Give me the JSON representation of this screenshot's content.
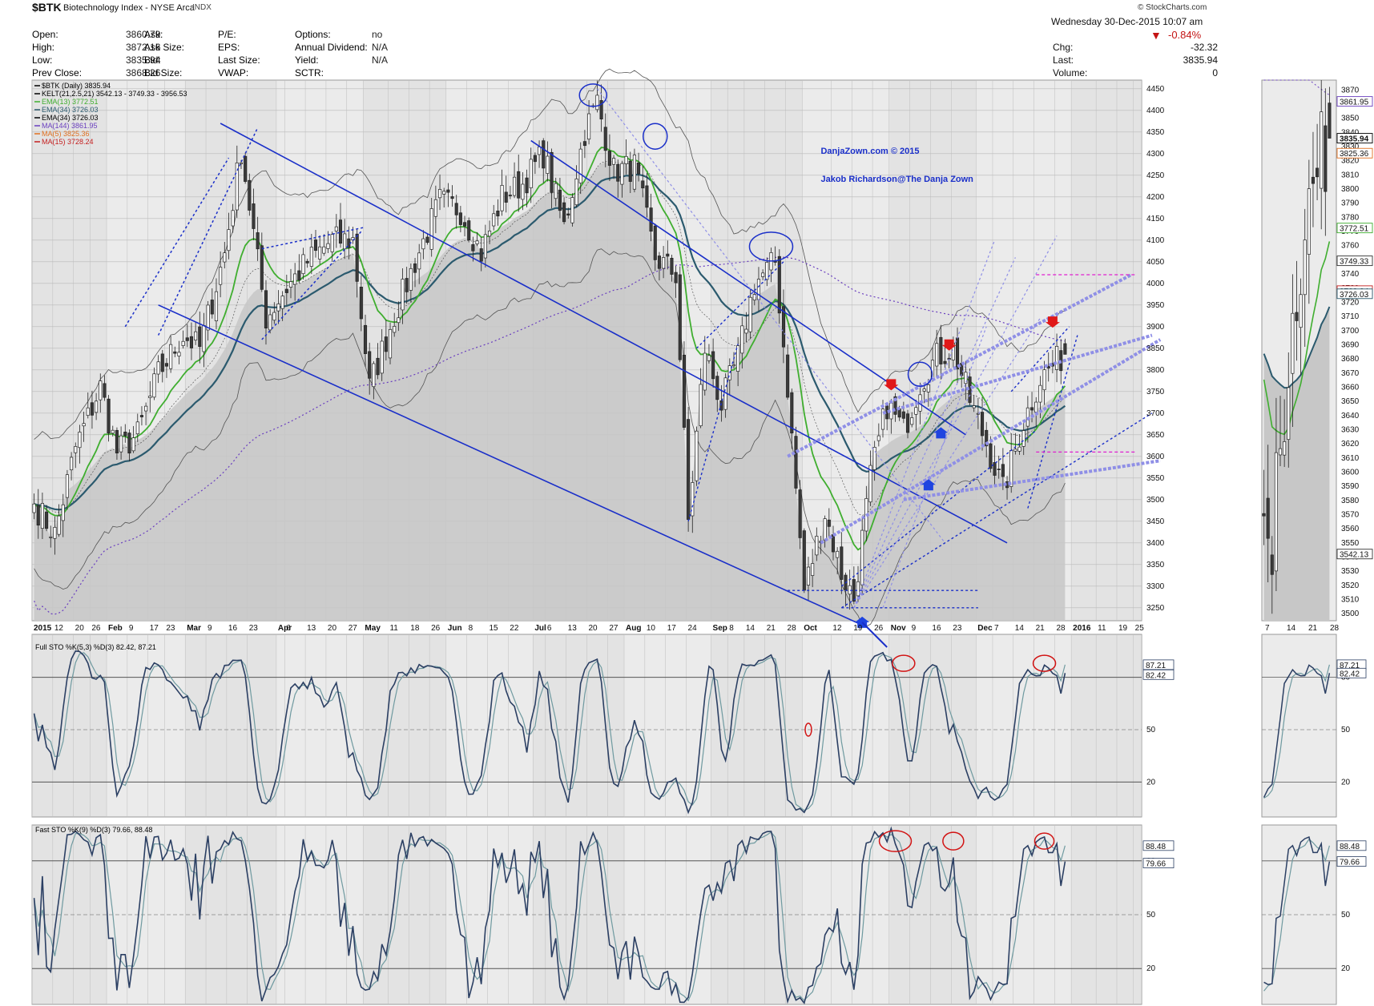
{
  "header": {
    "symbol": "$BTK",
    "name": "Biotechnology Index - NYSE Arca",
    "exchange": "INDX",
    "timestamp": "Wednesday 30-Dec-2015 10:07 am",
    "brand": "© StockCharts.com",
    "change_pct": "-0.84%",
    "quote_rows": [
      {
        "l1": "Open:",
        "v1": "3860.79",
        "l2": "Ask:",
        "v2": "",
        "l3": "P/E:",
        "v3": "",
        "l4": "Options:",
        "v4": "no"
      },
      {
        "l1": "High:",
        "v1": "3872.16",
        "l2": "Ask Size:",
        "v2": "",
        "l3": "EPS:",
        "v3": "",
        "l4": "Annual Dividend:",
        "v4": "N/A"
      },
      {
        "l1": "Low:",
        "v1": "3835.94",
        "l2": "Bid:",
        "v2": "",
        "l3": "Last Size:",
        "v3": "",
        "l4": "Yield:",
        "v4": "N/A"
      },
      {
        "l1": "Prev Close:",
        "v1": "3868.26",
        "l2": "Bid Size:",
        "v2": "",
        "l3": "VWAP:",
        "v3": "",
        "l4": "SCTR:",
        "v4": ""
      }
    ],
    "right_rows": [
      {
        "l": "Chg:",
        "v": "-32.32"
      },
      {
        "l": "Last:",
        "v": "3835.94"
      },
      {
        "l": "Volume:",
        "v": "0"
      }
    ]
  },
  "colors": {
    "background": "#ffffff",
    "panel": "#ebebeb",
    "band": "#dcdcdc",
    "area": "#c7c7c7",
    "ema13": "#3fae2f",
    "ema34": "#2b5a6e",
    "ma144": "#6a3fbf",
    "ma5": "#e07020",
    "ma15": "#c41e1e",
    "kelt": "#555555",
    "stoK": "#2b3f63",
    "stoD": "#6f9aa0",
    "trend": "#1a2fc9",
    "trend_light": "#8f8fe6",
    "circle_blue": "#1a2fc9",
    "circle_red": "#d21414",
    "level_magenta": "#e020d0",
    "arrow_red": "#e01818",
    "arrow_blue": "#1f44e0"
  },
  "legend": [
    {
      "text": "$BTK (Daily) 3835.94",
      "color": "#000000"
    },
    {
      "text": "KELT(21,2.5,21) 3542.13 - 3749.33 - 3956.53",
      "color": "#000000"
    },
    {
      "text": "EMA(13) 3772.51",
      "color": "#3fae2f"
    },
    {
      "text": "EMA(34) 3726.03",
      "color": "#2b5a6e"
    },
    {
      "text": "EMA(34) 3726.03",
      "color": "#000000"
    },
    {
      "text": "MA(144) 3861.95",
      "color": "#6a3fbf"
    },
    {
      "text": "MA(5) 3825.36",
      "color": "#e07020"
    },
    {
      "text": "MA(15) 3728.24",
      "color": "#c41e1e"
    }
  ],
  "annotations": [
    "DanjaZown.com © 2015",
    "Jakob Richardson@The Danja Zown"
  ],
  "sto_full_label": "Full STO %K(5,3) %D(3) 82.42, 87.21",
  "sto_fast_label": "Fast STO %K(9) %D(3) 79.66, 88.48",
  "chart_data": {
    "type": "line",
    "price_axis": {
      "ticks": [
        3250,
        3300,
        3350,
        3400,
        3450,
        3500,
        3550,
        3600,
        3650,
        3700,
        3750,
        3800,
        3850,
        3900,
        3950,
        4000,
        4050,
        4100,
        4150,
        4200,
        4250,
        4300,
        4350,
        4400,
        4450
      ],
      "range": [
        3220,
        4470
      ]
    },
    "date_ticks": [
      {
        "label": "2015",
        "bold": true,
        "i": 0
      },
      {
        "label": "12",
        "i": 5
      },
      {
        "label": "20",
        "i": 10
      },
      {
        "label": "26",
        "i": 14
      },
      {
        "label": "Feb",
        "bold": true,
        "i": 18
      },
      {
        "label": "9",
        "i": 23
      },
      {
        "label": "17",
        "i": 28
      },
      {
        "label": "23",
        "i": 32
      },
      {
        "label": "Mar",
        "bold": true,
        "i": 37
      },
      {
        "label": "9",
        "i": 42
      },
      {
        "label": "16",
        "i": 47
      },
      {
        "label": "23",
        "i": 52
      },
      {
        "label": "Apr",
        "bold": true,
        "i": 59
      },
      {
        "label": "6",
        "i": 61
      },
      {
        "label": "13",
        "i": 66
      },
      {
        "label": "20",
        "i": 71
      },
      {
        "label": "27",
        "i": 76
      },
      {
        "label": "May",
        "bold": true,
        "i": 80
      },
      {
        "label": "11",
        "i": 86
      },
      {
        "label": "18",
        "i": 91
      },
      {
        "label": "26",
        "i": 96
      },
      {
        "label": "Jun",
        "bold": true,
        "i": 100
      },
      {
        "label": "8",
        "i": 105
      },
      {
        "label": "15",
        "i": 110
      },
      {
        "label": "22",
        "i": 115
      },
      {
        "label": "Jul",
        "bold": true,
        "i": 121
      },
      {
        "label": "6",
        "i": 124
      },
      {
        "label": "13",
        "i": 129
      },
      {
        "label": "20",
        "i": 134
      },
      {
        "label": "27",
        "i": 139
      },
      {
        "label": "Aug",
        "bold": true,
        "i": 143
      },
      {
        "label": "10",
        "i": 148
      },
      {
        "label": "17",
        "i": 153
      },
      {
        "label": "24",
        "i": 158
      },
      {
        "label": "Sep",
        "bold": true,
        "i": 164
      },
      {
        "label": "8",
        "i": 168
      },
      {
        "label": "14",
        "i": 172
      },
      {
        "label": "21",
        "i": 177
      },
      {
        "label": "28",
        "i": 182
      },
      {
        "label": "Oct",
        "bold": true,
        "i": 186
      },
      {
        "label": "12",
        "i": 193
      },
      {
        "label": "19",
        "i": 198
      },
      {
        "label": "26",
        "i": 203
      },
      {
        "label": "Nov",
        "bold": true,
        "i": 207
      },
      {
        "label": "9",
        "i": 212
      },
      {
        "label": "16",
        "i": 217
      },
      {
        "label": "23",
        "i": 222
      },
      {
        "label": "Dec",
        "bold": true,
        "i": 228
      },
      {
        "label": "7",
        "i": 232
      },
      {
        "label": "14",
        "i": 237
      },
      {
        "label": "21",
        "i": 242
      },
      {
        "label": "28",
        "i": 247
      },
      {
        "label": "2016",
        "bold": true,
        "i": 251
      },
      {
        "label": "11",
        "i": 257
      },
      {
        "label": "19",
        "i": 262
      },
      {
        "label": "25",
        "i": 266
      }
    ],
    "anchors": [
      [
        0,
        3490
      ],
      [
        5,
        3420
      ],
      [
        10,
        3620
      ],
      [
        16,
        3760
      ],
      [
        20,
        3610
      ],
      [
        25,
        3650
      ],
      [
        30,
        3790
      ],
      [
        36,
        3880
      ],
      [
        40,
        3850
      ],
      [
        46,
        4070
      ],
      [
        50,
        4310
      ],
      [
        56,
        3920
      ],
      [
        61,
        3990
      ],
      [
        66,
        4050
      ],
      [
        72,
        4100
      ],
      [
        77,
        4100
      ],
      [
        81,
        3760
      ],
      [
        86,
        3900
      ],
      [
        92,
        4050
      ],
      [
        98,
        4190
      ],
      [
        103,
        4170
      ],
      [
        108,
        4070
      ],
      [
        113,
        4200
      ],
      [
        118,
        4230
      ],
      [
        123,
        4300
      ],
      [
        128,
        4130
      ],
      [
        133,
        4350
      ],
      [
        136,
        4420
      ],
      [
        140,
        4260
      ],
      [
        145,
        4270
      ],
      [
        150,
        4060
      ],
      [
        155,
        4020
      ],
      [
        158,
        3450
      ],
      [
        162,
        3850
      ],
      [
        166,
        3720
      ],
      [
        170,
        3830
      ],
      [
        174,
        4000
      ],
      [
        179,
        4050
      ],
      [
        182,
        3760
      ],
      [
        186,
        3290
      ],
      [
        191,
        3470
      ],
      [
        195,
        3330
      ],
      [
        198,
        3270
      ],
      [
        202,
        3550
      ],
      [
        206,
        3720
      ],
      [
        210,
        3660
      ],
      [
        214,
        3770
      ],
      [
        218,
        3830
      ],
      [
        222,
        3850
      ],
      [
        226,
        3730
      ],
      [
        230,
        3630
      ],
      [
        234,
        3520
      ],
      [
        239,
        3680
      ],
      [
        243,
        3780
      ],
      [
        247,
        3820
      ],
      [
        249,
        3836
      ]
    ],
    "stochastic_levels": [
      20,
      50,
      80
    ],
    "stochastic_range": [
      0,
      100
    ],
    "full_sto_last": {
      "k": 82.42,
      "d": 87.21
    },
    "fast_sto_last": {
      "k": 79.66,
      "d": 88.48
    },
    "right_axis_mini": {
      "ticks": [
        3500,
        3510,
        3520,
        3530,
        3540,
        3550,
        3560,
        3570,
        3580,
        3590,
        3600,
        3610,
        3620,
        3630,
        3640,
        3650,
        3660,
        3670,
        3680,
        3690,
        3700,
        3710,
        3720,
        3730,
        3740,
        3750,
        3760,
        3770,
        3780,
        3790,
        3800,
        3810,
        3820,
        3830,
        3840,
        3850,
        3860,
        3870
      ],
      "range": [
        3495,
        3877
      ],
      "date_ticks": [
        {
          "label": "7",
          "d": 0
        },
        {
          "label": "14",
          "d": 5
        },
        {
          "label": "21",
          "d": 10
        },
        {
          "label": "28",
          "d": 15
        }
      ]
    },
    "value_tags": [
      {
        "v": 3861.95,
        "text": "3861.95",
        "bg": "#ffffff",
        "fg": "#6a3fbf",
        "border": "#6a3fbf"
      },
      {
        "v": 3835.94,
        "text": "3835.94",
        "bg": "#ffffff",
        "fg": "#000000",
        "border": "#000000",
        "bold": true
      },
      {
        "v": 3825.36,
        "text": "3825.36",
        "bg": "#ffffff",
        "fg": "#e07020",
        "border": "#e07020"
      },
      {
        "v": 3772.51,
        "text": "3772.51",
        "bg": "#ffffff",
        "fg": "#3fae2f",
        "border": "#3fae2f"
      },
      {
        "v": 3749.33,
        "text": "3749.33",
        "bg": "#ffffff",
        "fg": "#333333",
        "border": "#333333"
      },
      {
        "v": 3728.24,
        "text": "3728.24",
        "bg": "#ffffff",
        "fg": "#c41e1e",
        "border": "#c41e1e"
      },
      {
        "v": 3726.03,
        "text": "3726.03",
        "bg": "#ffffff",
        "fg": "#2b5a6e",
        "border": "#2b5a6e"
      },
      {
        "v": 3542.13,
        "text": "3542.13",
        "bg": "#ffffff",
        "fg": "#333333",
        "border": "#333333"
      }
    ],
    "sto_tags_full": [
      {
        "v": 87.21,
        "text": "87.21"
      },
      {
        "v": 82.42,
        "text": "82.42"
      }
    ],
    "sto_tags_fast": [
      {
        "v": 88.48,
        "text": "88.48"
      },
      {
        "v": 79.66,
        "text": "79.66"
      }
    ]
  }
}
